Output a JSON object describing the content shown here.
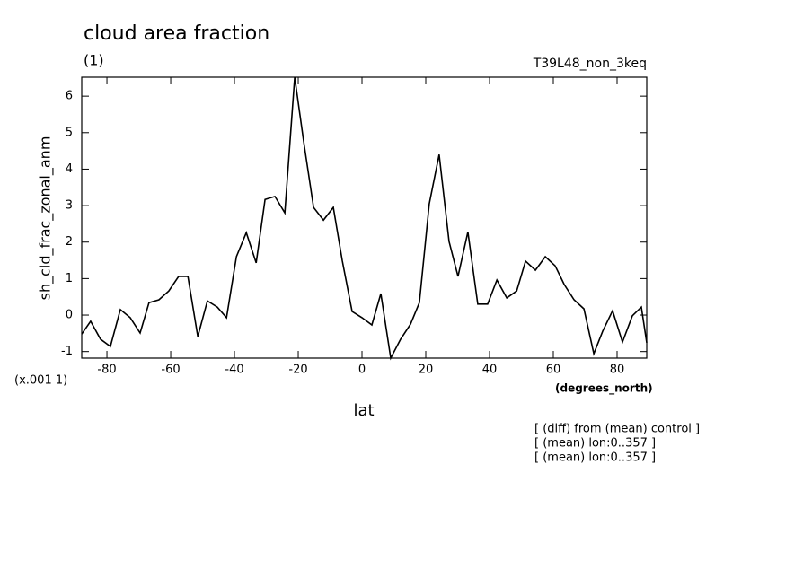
{
  "chart_data": {
    "type": "line",
    "title": "cloud area fraction",
    "subtitle": "(1)",
    "run_label": "T39L48_non_3keq",
    "y_label": "sh_cld_frac_zonal_anm",
    "y_scale_label": "(x.001 1)",
    "x_units_label": "(degrees_north)",
    "x_label": "lat",
    "notes": [
      "[ (diff) from (mean) control ]",
      "[ (mean) lon:0..357 ]",
      "[ (mean) lon:0..357 ]"
    ],
    "x": [
      -87.9,
      -85.1,
      -82.0,
      -78.9,
      -75.8,
      -72.7,
      -69.6,
      -66.8,
      -63.7,
      -60.6,
      -57.5,
      -54.6,
      -51.5,
      -48.5,
      -45.4,
      -42.5,
      -39.4,
      -36.3,
      -33.2,
      -30.4,
      -27.3,
      -24.2,
      -21.1,
      -18.3,
      -15.2,
      -12.1,
      -9.0,
      -6.2,
      -3.1,
      0,
      3.1,
      5.9,
      9.0,
      12.1,
      15.2,
      18.0,
      21.1,
      24.2,
      27.3,
      30.1,
      33.2,
      36.3,
      39.4,
      42.3,
      45.4,
      48.5,
      51.3,
      54.4,
      57.5,
      60.6,
      63.4,
      66.5,
      69.6,
      72.7,
      75.5,
      78.6,
      81.7,
      84.8,
      87.6,
      89.3
    ],
    "series": [
      {
        "color": "#000000",
        "values": [
          -0.52,
          -0.17,
          -0.66,
          -0.86,
          0.15,
          -0.07,
          -0.49,
          0.34,
          0.42,
          0.66,
          1.06,
          1.06,
          -0.59,
          0.39,
          0.22,
          -0.07,
          1.6,
          2.26,
          1.43,
          3.17,
          3.25,
          2.8,
          6.52,
          4.75,
          2.95,
          2.6,
          2.95,
          1.5,
          0.1,
          -0.07,
          -0.27,
          0.59,
          -1.18,
          -0.66,
          -0.25,
          0.34,
          3.05,
          4.4,
          2.02,
          1.06,
          2.28,
          0.3,
          0.3,
          0.96,
          0.47,
          0.66,
          1.48,
          1.23,
          1.6,
          1.35,
          0.84,
          0.42,
          0.17,
          -1.06,
          -0.44,
          0.12,
          -0.74,
          -0.02,
          0.22,
          -0.76
        ]
      }
    ],
    "xlim": [
      -87.9,
      89.3
    ],
    "ylim": [
      -1.18,
      6.52
    ],
    "xticks": [
      -80,
      -60,
      -40,
      -20,
      0,
      20,
      40,
      60,
      80
    ],
    "yticks": [
      -1,
      0,
      1,
      2,
      3,
      4,
      5,
      6
    ],
    "grid": false
  }
}
